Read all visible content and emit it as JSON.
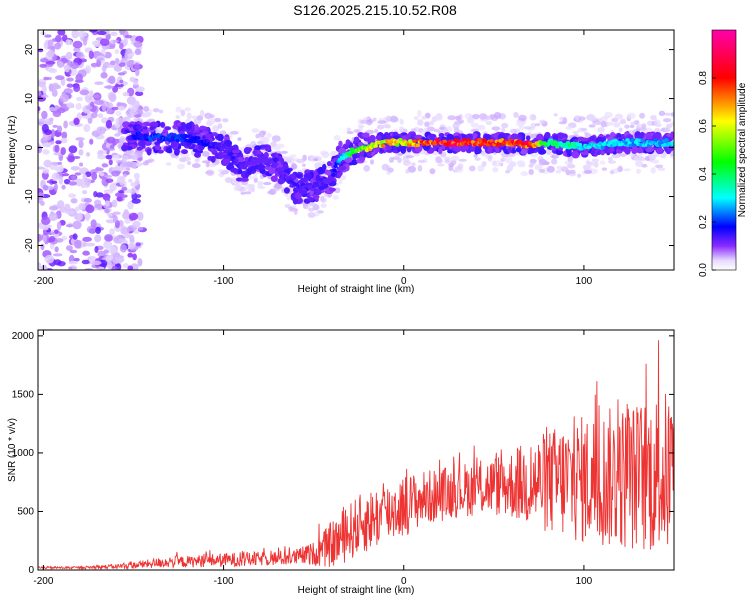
{
  "page": {
    "title": "S126.2025.215.10.52.R08"
  },
  "chart_data": [
    {
      "type": "heatmap",
      "title": "S126.2025.215.10.52.R08",
      "xlabel": "Height of straight line (km)",
      "ylabel": "Frequency (Hz)",
      "xlim": [
        -203,
        150
      ],
      "ylim": [
        -25,
        24
      ],
      "x_ticks": [
        -200,
        -100,
        0,
        100
      ],
      "y_ticks": [
        -20,
        -10,
        0,
        10,
        20
      ],
      "colorbar": {
        "label": "Normalized spectral amplitude",
        "range": [
          0,
          1
        ],
        "ticks": [
          0.0,
          0.2,
          0.4,
          0.6,
          0.8
        ],
        "colors": [
          "#ffffff",
          "#6a00ff",
          "#0000ff",
          "#00ffff",
          "#00ff00",
          "#ffff00",
          "#ff0000",
          "#ff00aa"
        ]
      },
      "ridge": {
        "x": [
          -160,
          -140,
          -120,
          -100,
          -90,
          -80,
          -70,
          -60,
          -50,
          -40,
          -35,
          -30,
          -25,
          -20,
          -10,
          0,
          10,
          20,
          40,
          60,
          70,
          80,
          100,
          120,
          150
        ],
        "frequency": [
          3,
          2,
          2,
          0,
          -4,
          -2,
          -4,
          -8,
          -8,
          -6,
          -2,
          -1,
          0,
          0,
          1,
          1,
          1,
          1,
          1,
          1,
          0.5,
          1,
          0,
          1,
          1
        ],
        "amplitude": [
          0.12,
          0.22,
          0.2,
          0.15,
          0.15,
          0.12,
          0.13,
          0.15,
          0.15,
          0.12,
          0.3,
          0.45,
          0.55,
          0.65,
          0.7,
          0.65,
          0.8,
          0.9,
          0.9,
          0.85,
          0.9,
          0.45,
          0.35,
          0.3,
          0.3
        ]
      }
    },
    {
      "type": "line",
      "xlabel": "Height of straight line (km)",
      "ylabel": "SNR (10 * v/v)",
      "xlim": [
        -203,
        150
      ],
      "ylim": [
        0,
        2050
      ],
      "x_ticks": [
        -200,
        -100,
        0,
        100
      ],
      "y_ticks": [
        0,
        500,
        1000,
        1500,
        2000
      ],
      "color": "#ee3333",
      "series": [
        {
          "x": [
            -200,
            -190,
            -180,
            -170,
            -160,
            -150,
            -140,
            -130,
            -120,
            -110,
            -100,
            -90,
            -80,
            -70,
            -60,
            -50,
            -45,
            -40,
            -35,
            -30,
            -25,
            -20,
            -15,
            -10,
            -5,
            0,
            5,
            10,
            20,
            30,
            40,
            50,
            60,
            70,
            80,
            90,
            100,
            110,
            120,
            130,
            140,
            150
          ],
          "mean": [
            20,
            20,
            20,
            25,
            30,
            40,
            55,
            70,
            70,
            80,
            85,
            90,
            95,
            100,
            110,
            140,
            170,
            220,
            270,
            330,
            380,
            420,
            450,
            480,
            520,
            550,
            580,
            610,
            640,
            680,
            700,
            720,
            730,
            740,
            750,
            760,
            770,
            780,
            790,
            800,
            820,
            830
          ],
          "spread": [
            10,
            10,
            10,
            15,
            20,
            30,
            40,
            50,
            50,
            55,
            60,
            65,
            60,
            65,
            70,
            100,
            150,
            200,
            230,
            250,
            260,
            270,
            270,
            270,
            270,
            270,
            250,
            240,
            230,
            230,
            240,
            260,
            300,
            380,
            450,
            520,
            560,
            600,
            620,
            650,
            700,
            720
          ],
          "peak": [
            30,
            30,
            30,
            50,
            60,
            80,
            150,
            170,
            160,
            170,
            180,
            180,
            190,
            210,
            230,
            380,
            480,
            560,
            620,
            680,
            830,
            820,
            850,
            850,
            830,
            930,
            880,
            930,
            950,
            1000,
            1080,
            1000,
            1080,
            1100,
            1300,
            1500,
            1750,
            1780,
            1720,
            1650,
            2060,
            1450
          ]
        }
      ]
    }
  ]
}
